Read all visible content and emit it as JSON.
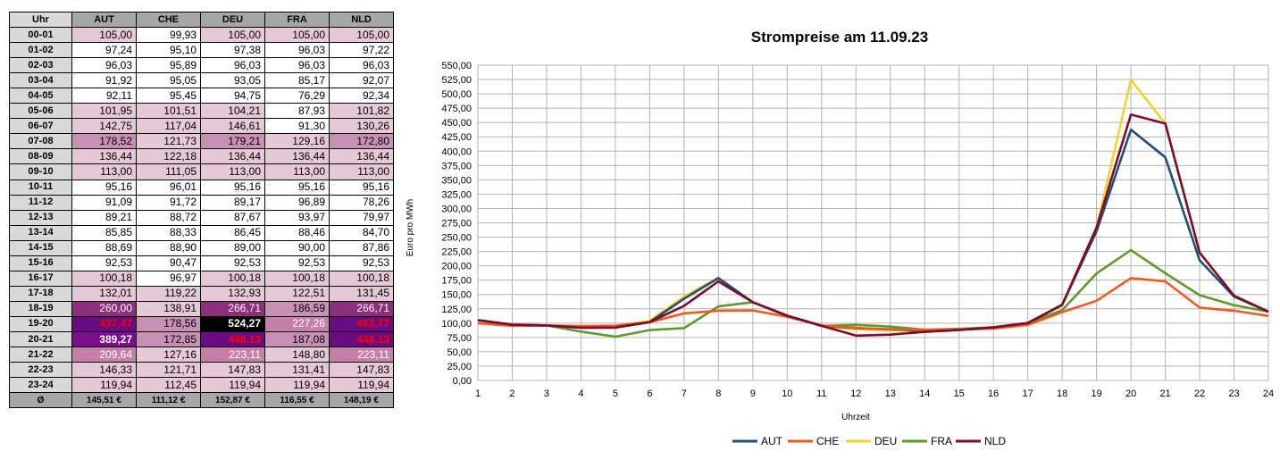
{
  "table": {
    "header": [
      "Uhr",
      "AUT",
      "CHE",
      "DEU",
      "FRA",
      "NLD"
    ],
    "rows": [
      {
        "hour": "00-01",
        "values": [
          "105,00",
          "99,93",
          "105,00",
          "105,00",
          "105,00"
        ]
      },
      {
        "hour": "01-02",
        "values": [
          "97,24",
          "95,10",
          "97,38",
          "96,03",
          "97,22"
        ]
      },
      {
        "hour": "02-03",
        "values": [
          "96,03",
          "95,89",
          "96,03",
          "96,03",
          "96,03"
        ]
      },
      {
        "hour": "03-04",
        "values": [
          "91,92",
          "95,05",
          "93,05",
          "85,17",
          "92,07"
        ]
      },
      {
        "hour": "04-05",
        "values": [
          "92,11",
          "95,45",
          "94,75",
          "76,29",
          "92,34"
        ]
      },
      {
        "hour": "05-06",
        "values": [
          "101,95",
          "101,51",
          "104,21",
          "87,93",
          "101,82"
        ]
      },
      {
        "hour": "06-07",
        "values": [
          "142,75",
          "117,04",
          "146,61",
          "91,30",
          "130,26"
        ]
      },
      {
        "hour": "07-08",
        "values": [
          "178,52",
          "121,73",
          "179,21",
          "129,16",
          "172,80"
        ]
      },
      {
        "hour": "08-09",
        "values": [
          "136,44",
          "122,18",
          "136,44",
          "136,44",
          "136,44"
        ]
      },
      {
        "hour": "09-10",
        "values": [
          "113,00",
          "111,05",
          "113,00",
          "113,00",
          "113,00"
        ]
      },
      {
        "hour": "10-11",
        "values": [
          "95,16",
          "96,01",
          "95,16",
          "95,16",
          "95,16"
        ]
      },
      {
        "hour": "11-12",
        "values": [
          "91,09",
          "91,72",
          "89,17",
          "96,89",
          "78,26"
        ]
      },
      {
        "hour": "12-13",
        "values": [
          "89,21",
          "88,72",
          "87,67",
          "93,97",
          "79,97"
        ]
      },
      {
        "hour": "13-14",
        "values": [
          "85,85",
          "88,33",
          "86,45",
          "88,46",
          "84,70"
        ]
      },
      {
        "hour": "14-15",
        "values": [
          "88,69",
          "88,90",
          "89,00",
          "90,00",
          "87,86"
        ]
      },
      {
        "hour": "15-16",
        "values": [
          "92,53",
          "90,47",
          "92,53",
          "92,53",
          "92,53"
        ]
      },
      {
        "hour": "16-17",
        "values": [
          "100,18",
          "96,97",
          "100,18",
          "100,18",
          "100,18"
        ]
      },
      {
        "hour": "17-18",
        "values": [
          "132,01",
          "119,22",
          "132,93",
          "122,51",
          "131,45"
        ]
      },
      {
        "hour": "18-19",
        "values": [
          "260,00",
          "138,91",
          "266,71",
          "186,59",
          "266,71"
        ]
      },
      {
        "hour": "19-20",
        "values": [
          "437,47",
          "178,56",
          "524,27",
          "227,26",
          "463,77"
        ]
      },
      {
        "hour": "20-21",
        "values": [
          "389,27",
          "172,85",
          "448,13",
          "187,08",
          "448,13"
        ]
      },
      {
        "hour": "21-22",
        "values": [
          "209,64",
          "127,16",
          "223,11",
          "148,80",
          "223,11"
        ]
      },
      {
        "hour": "22-23",
        "values": [
          "146,33",
          "121,71",
          "147,83",
          "131,41",
          "147,83"
        ]
      },
      {
        "hour": "23-24",
        "values": [
          "119,94",
          "112,45",
          "119,94",
          "119,94",
          "119,94"
        ]
      }
    ],
    "average_label": "Ø",
    "averages": [
      "145,51 €",
      "111,12 €",
      "152,87 €",
      "116,55 €",
      "148,19 €"
    ],
    "colors": {
      "header": "#a6a6a6",
      "hour_cell": "#d9d9d9",
      "tier1": "#e6c8d6",
      "tier2": "#c67fa8",
      "tier3": "#8e2f7d",
      "tier4": "#6a0a84",
      "max_cell": "#000000",
      "red_text": "#ff0000"
    }
  },
  "chart_data": {
    "type": "line",
    "title": "Strompreise am 11.09.23",
    "xlabel": "Uhrzeit",
    "ylabel": "Euro pro MWh",
    "x": [
      1,
      2,
      3,
      4,
      5,
      6,
      7,
      8,
      9,
      10,
      11,
      12,
      13,
      14,
      15,
      16,
      17,
      18,
      19,
      20,
      21,
      22,
      23,
      24
    ],
    "ylim": [
      0,
      550
    ],
    "ytick_step": 25,
    "grid": true,
    "legend_position": "bottom",
    "series": [
      {
        "name": "AUT",
        "color": "#1f4e79",
        "values": [
          105.0,
          97.24,
          96.03,
          91.92,
          92.11,
          101.95,
          142.75,
          178.52,
          136.44,
          113.0,
          95.16,
          91.09,
          89.21,
          85.85,
          88.69,
          92.53,
          100.18,
          132.01,
          260.0,
          437.47,
          389.27,
          209.64,
          146.33,
          119.94
        ]
      },
      {
        "name": "CHE",
        "color": "#f4581f",
        "values": [
          99.93,
          95.1,
          95.89,
          95.05,
          95.45,
          101.51,
          117.04,
          121.73,
          122.18,
          111.05,
          96.01,
          91.72,
          88.72,
          88.33,
          88.9,
          90.47,
          96.97,
          119.22,
          138.91,
          178.56,
          172.85,
          127.16,
          121.71,
          112.45
        ]
      },
      {
        "name": "DEU",
        "color": "#f5d327",
        "values": [
          105.0,
          97.38,
          96.03,
          93.05,
          94.75,
          104.21,
          146.61,
          179.21,
          136.44,
          113.0,
          95.16,
          89.17,
          87.67,
          86.45,
          89.0,
          92.53,
          100.18,
          132.93,
          266.71,
          524.27,
          448.13,
          223.11,
          147.83,
          119.94
        ]
      },
      {
        "name": "FRA",
        "color": "#5e9a2a",
        "values": [
          105.0,
          96.03,
          96.03,
          85.17,
          76.29,
          87.93,
          91.3,
          129.16,
          136.44,
          113.0,
          95.16,
          96.89,
          93.97,
          88.46,
          90.0,
          92.53,
          100.18,
          122.51,
          186.59,
          227.26,
          187.08,
          148.8,
          131.41,
          119.94
        ]
      },
      {
        "name": "NLD",
        "color": "#7b0c2d",
        "values": [
          105.0,
          97.22,
          96.03,
          92.07,
          92.34,
          101.82,
          130.26,
          172.8,
          136.44,
          113.0,
          95.16,
          78.26,
          79.97,
          84.7,
          87.86,
          92.53,
          100.18,
          131.45,
          266.71,
          463.77,
          448.13,
          223.11,
          147.83,
          119.94
        ]
      }
    ]
  }
}
